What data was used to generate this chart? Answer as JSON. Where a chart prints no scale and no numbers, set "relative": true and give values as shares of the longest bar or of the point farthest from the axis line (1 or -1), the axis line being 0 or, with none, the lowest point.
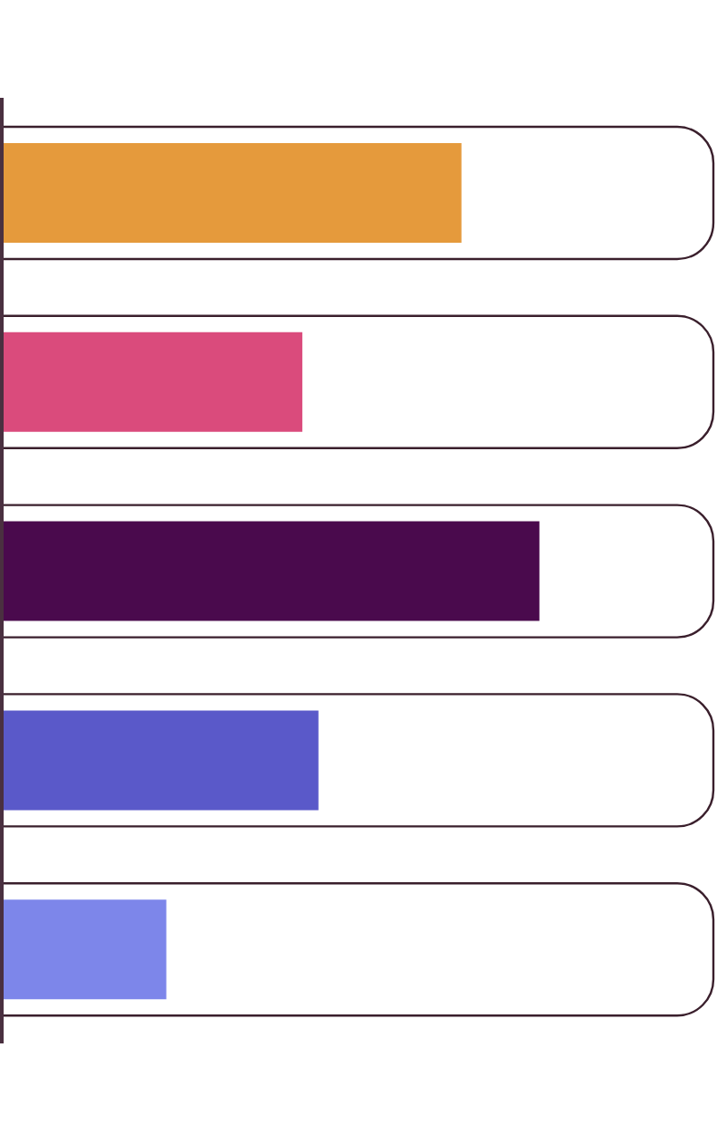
{
  "chart_data": {
    "type": "bar",
    "orientation": "horizontal",
    "relative": true,
    "categories": [
      null,
      null,
      null,
      null,
      null
    ],
    "values": [
      0.855,
      0.559,
      1,
      0.589,
      0.306
    ],
    "colors": [
      "#e59a3c",
      "#da4b7c",
      "#4a0a4d",
      "#5a59c9",
      "#7d86ea"
    ]
  }
}
